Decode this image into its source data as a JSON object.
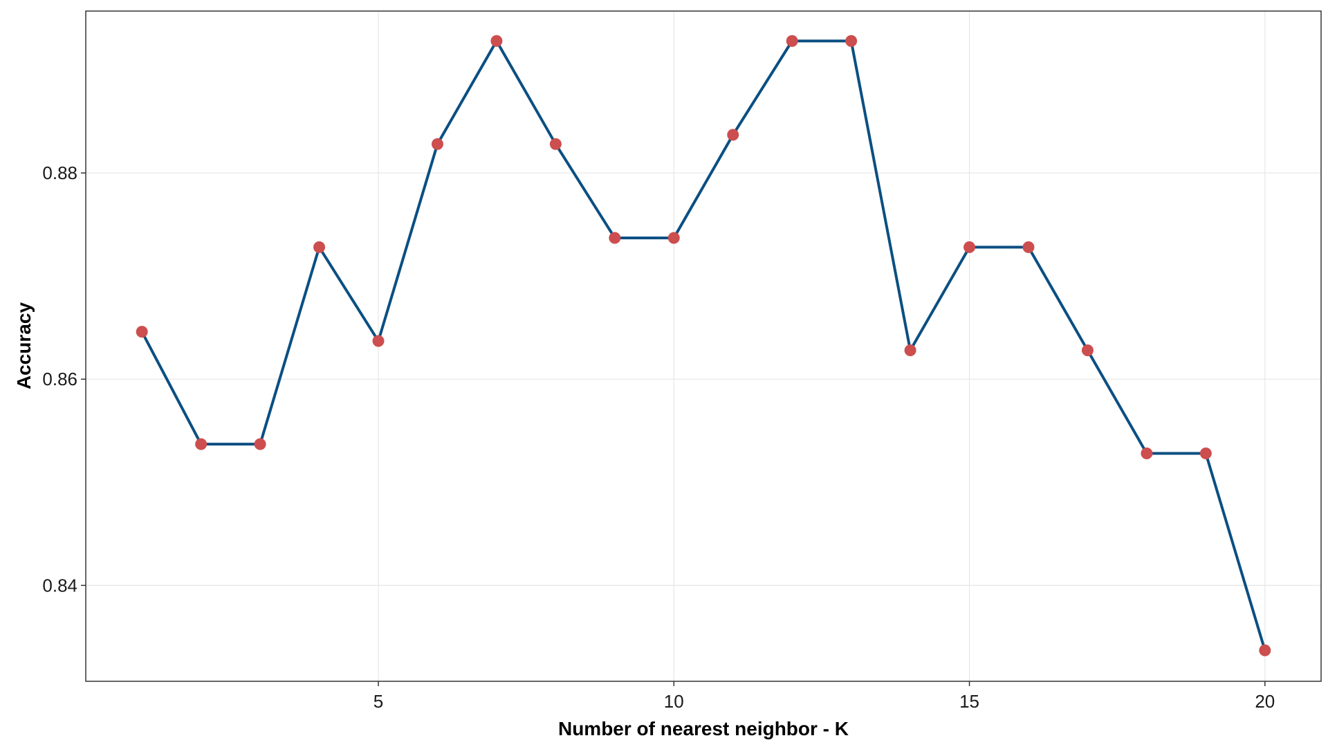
{
  "chart_data": {
    "type": "line",
    "title": "",
    "xlabel": "Number of nearest neighbor - K",
    "ylabel": "Accuracy",
    "x": [
      1,
      2,
      3,
      4,
      5,
      6,
      7,
      8,
      9,
      10,
      11,
      12,
      13,
      14,
      15,
      16,
      17,
      18,
      19,
      20
    ],
    "series": [
      {
        "values": [
          0.8646,
          0.8537,
          0.8537,
          0.8728,
          0.8637,
          0.8828,
          0.8928,
          0.8828,
          0.8737,
          0.8737,
          0.8837,
          0.8928,
          0.8928,
          0.8628,
          0.8728,
          0.8728,
          0.8628,
          0.8528,
          0.8528,
          0.8337
        ],
        "line_color": "#0b4f82",
        "marker_color": "#cc4e4e"
      }
    ],
    "x_ticks": [
      5,
      10,
      15,
      20
    ],
    "x_tick_labels": [
      "5",
      "10",
      "15",
      "20"
    ],
    "y_ticks": [
      0.84,
      0.86,
      0.88
    ],
    "y_tick_labels": [
      "0.84",
      "0.86",
      "0.88"
    ],
    "xlim": [
      0.05,
      20.95
    ],
    "ylim": [
      0.8307,
      0.8957
    ],
    "grid": true,
    "legend": "none",
    "colors": {
      "grid": "#e6e6e6",
      "border": "#333333",
      "background": "#ffffff"
    }
  }
}
